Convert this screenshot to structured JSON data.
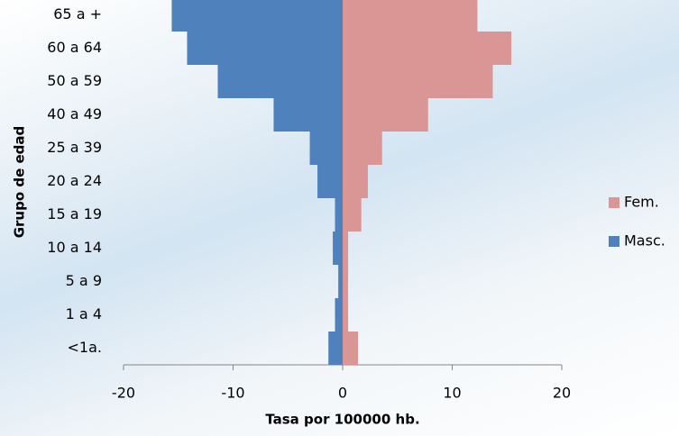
{
  "chart_data": {
    "type": "bar",
    "orientation": "horizontal",
    "stacked": false,
    "x_label": "Tasa por 100000 hb.",
    "y_label": "Grupo de edad",
    "categories": [
      "65 a +",
      "60 a 64",
      "50 a 59",
      "40 a 49",
      "25 a 39",
      "20 a 24",
      "15 a 19",
      "10 a 14",
      "5 a 9",
      "1 a 4",
      "<1a."
    ],
    "series": [
      {
        "name": "Fem.",
        "color": "#d99694",
        "values": [
          12.3,
          15.4,
          13.7,
          7.8,
          3.6,
          2.3,
          1.7,
          0.5,
          0.5,
          0.5,
          1.4
        ]
      },
      {
        "name": "Masc.",
        "color": "#4f81bd",
        "values": [
          -15.6,
          -14.2,
          -11.4,
          -6.3,
          -3.0,
          -2.3,
          -0.7,
          -0.9,
          -0.4,
          -0.7,
          -1.3
        ]
      }
    ],
    "xlim": [
      -20,
      20
    ],
    "xticks": [
      -20,
      -10,
      0,
      10,
      20
    ],
    "legend": "right"
  }
}
